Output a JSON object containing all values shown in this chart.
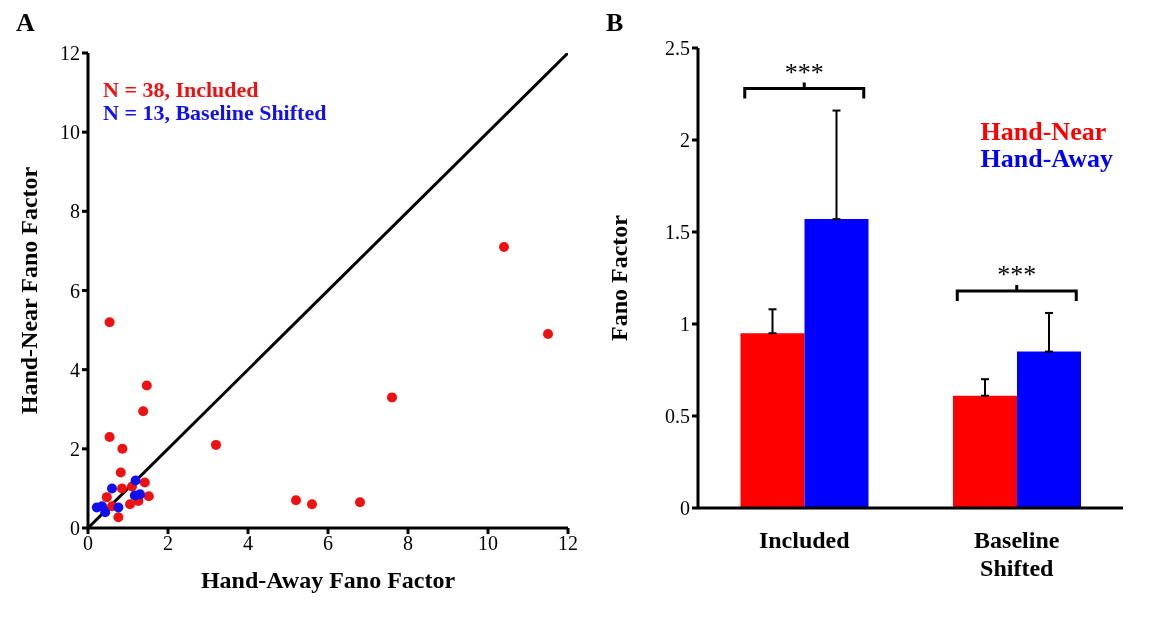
{
  "chart_data": [
    {
      "type": "scatter",
      "title": "A",
      "xlabel": "Hand-Away Fano Factor",
      "ylabel": "Hand-Near Fano Factor",
      "xlim": [
        0,
        12
      ],
      "ylim": [
        0,
        12
      ],
      "xticks": [
        0,
        2,
        4,
        6,
        8,
        10,
        12
      ],
      "yticks": [
        0,
        2,
        4,
        6,
        8,
        10,
        12
      ],
      "marker": "circle",
      "legend": "top left",
      "grid": false,
      "series": [
        {
          "name": "N = 38, Included",
          "color": "#ee1111",
          "x": [
            10.4,
            11.5,
            7.6,
            3.2,
            5.2,
            5.6,
            6.8,
            0.54,
            1.47,
            1.38,
            0.54,
            0.86,
            0.82,
            1.42,
            1.52,
            1.26,
            1.05,
            0.76,
            0.47,
            0.85,
            1.1,
            0.6
          ],
          "values": [
            7.1,
            4.9,
            3.3,
            2.1,
            0.7,
            0.6,
            0.65,
            5.2,
            3.6,
            2.95,
            2.3,
            2.0,
            1.4,
            1.15,
            0.8,
            0.68,
            0.6,
            0.27,
            0.78,
            1.0,
            1.05,
            0.55
          ]
        },
        {
          "name": "N = 13, Baseline Shifted",
          "color": "#1111ee",
          "x": [
            0.6,
            1.19,
            1.17,
            1.3,
            0.22,
            0.43,
            0.76,
            0.35
          ],
          "values": [
            1.0,
            1.2,
            0.82,
            0.85,
            0.52,
            0.4,
            0.52,
            0.55
          ]
        },
        {
          "type": "line",
          "marker": "none",
          "color": "#000000",
          "x": [
            0,
            12
          ],
          "values": [
            0,
            12
          ]
        }
      ]
    },
    {
      "type": "bar",
      "title": "B",
      "ylabel": "Fano Factor",
      "categories": [
        "Included",
        "Baseline Shifted"
      ],
      "ylim": [
        0,
        2.5
      ],
      "yticks": [
        0,
        0.5,
        1,
        1.5,
        2,
        2.5
      ],
      "legend": "top right",
      "grid": false,
      "series": [
        {
          "name": "Hand-Near",
          "color": "#ff0000",
          "values": [
            0.95,
            0.61
          ],
          "errors": [
            [
              0.95,
              1.08
            ],
            [
              0.61,
              0.7
            ]
          ]
        },
        {
          "name": "Hand-Away",
          "color": "#0000ff",
          "values": [
            1.57,
            0.85
          ],
          "errors": [
            [
              1.57,
              2.16
            ],
            [
              0.85,
              1.06
            ]
          ]
        }
      ],
      "annotations": [
        "***",
        "***"
      ]
    }
  ]
}
